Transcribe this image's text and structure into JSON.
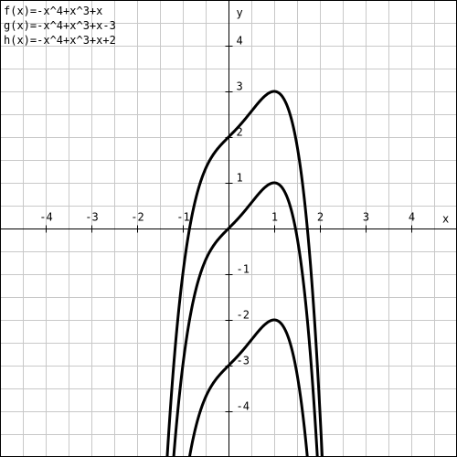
{
  "chart_data": {
    "type": "line",
    "title": "",
    "xlabel": "x",
    "ylabel": "y",
    "xlim": [
      -5,
      5
    ],
    "ylim": [
      -5,
      5
    ],
    "grid": true,
    "grid_step": 0.5,
    "x_ticks": [
      -4,
      -3,
      -2,
      -1,
      1,
      2,
      3,
      4
    ],
    "x_tick_labels": [
      "-4",
      "-3",
      "-2",
      "-1",
      "1",
      "2",
      "3",
      "4"
    ],
    "y_ticks": [
      4,
      3,
      2,
      1,
      -1,
      -2,
      -3,
      -4
    ],
    "y_tick_labels": [
      "4",
      "3",
      "2",
      "1",
      "-1",
      "-2",
      "-3",
      "-4"
    ],
    "legend_position": "top-left",
    "series": [
      {
        "name": "f(x)=-x^4+x^3+x",
        "coeffs": [
          -1,
          1,
          0,
          1,
          0
        ],
        "color": "#000000"
      },
      {
        "name": "g(x)=-x^4+x^3+x-3",
        "coeffs": [
          -1,
          1,
          0,
          1,
          -3
        ],
        "color": "#000000"
      },
      {
        "name": "h(x)=-x^4+x^3+x+2",
        "coeffs": [
          -1,
          1,
          0,
          1,
          2
        ],
        "color": "#000000"
      }
    ]
  }
}
